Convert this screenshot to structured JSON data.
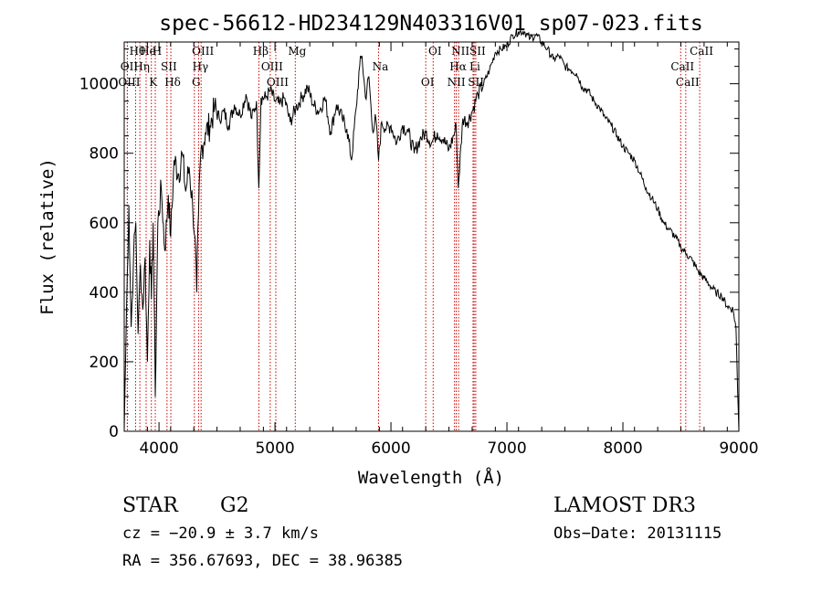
{
  "chart_data": {
    "type": "line",
    "title": "spec-56612-HD234129N403316V01_sp07-023.fits",
    "xlabel": "Wavelength (Å)",
    "ylabel": "Flux (relative)",
    "xlim": [
      3700,
      9000
    ],
    "ylim": [
      0,
      1120
    ],
    "x_ticks": [
      4000,
      5000,
      6000,
      7000,
      8000,
      9000
    ],
    "x_tick_labels": [
      "4000",
      "5000",
      "6000",
      "7000",
      "8000",
      "9000"
    ],
    "y_ticks": [
      0,
      200,
      400,
      600,
      800,
      1000
    ],
    "y_tick_labels": [
      "0",
      "200",
      "400",
      "600",
      "800",
      "1000"
    ],
    "grid": false,
    "series": [
      {
        "x": [
          3700,
          3720,
          3740,
          3760,
          3780,
          3800,
          3820,
          3840,
          3860,
          3880,
          3900,
          3920,
          3935,
          3950,
          3968,
          3990,
          4020,
          4050,
          4080,
          4101,
          4130,
          4170,
          4200,
          4230,
          4260,
          4290,
          4310,
          4325,
          4340,
          4360,
          4400,
          4440,
          4480,
          4520,
          4560,
          4600,
          4650,
          4700,
          4750,
          4800,
          4840,
          4861,
          4880,
          4920,
          4960,
          5000,
          5040,
          5080,
          5130,
          5180,
          5230,
          5280,
          5330,
          5380,
          5430,
          5480,
          5530,
          5580,
          5620,
          5660,
          5700,
          5730,
          5750,
          5780,
          5810,
          5840,
          5870,
          5893,
          5920,
          5960,
          6000,
          6050,
          6100,
          6150,
          6200,
          6250,
          6300,
          6350,
          6400,
          6450,
          6500,
          6540,
          6563,
          6580,
          6620,
          6660,
          6700,
          6750,
          6800,
          6850,
          6900,
          6950,
          7000,
          7050,
          7100,
          7150,
          7200,
          7250,
          7300,
          7350,
          7400,
          7450,
          7500,
          7550,
          7600,
          7650,
          7700,
          7750,
          7800,
          7850,
          7900,
          7950,
          8000,
          8050,
          8100,
          8150,
          8200,
          8250,
          8300,
          8350,
          8400,
          8450,
          8500,
          8550,
          8600,
          8650,
          8700,
          8750,
          8800,
          8850,
          8900,
          8950,
          8975,
          8990,
          9000
        ],
        "values": [
          0,
          350,
          650,
          300,
          500,
          600,
          280,
          480,
          350,
          500,
          200,
          550,
          380,
          600,
          100,
          600,
          700,
          520,
          680,
          560,
          780,
          740,
          800,
          690,
          760,
          650,
          560,
          400,
          620,
          800,
          860,
          880,
          930,
          900,
          920,
          880,
          940,
          910,
          970,
          900,
          950,
          700,
          960,
          960,
          980,
          950,
          940,
          960,
          890,
          930,
          960,
          990,
          940,
          920,
          960,
          860,
          940,
          900,
          870,
          780,
          930,
          1050,
          1080,
          960,
          1020,
          870,
          900,
          780,
          890,
          870,
          880,
          830,
          880,
          860,
          800,
          840,
          860,
          830,
          860,
          840,
          810,
          850,
          880,
          700,
          900,
          890,
          920,
          970,
          1000,
          1040,
          1090,
          1100,
          1110,
          1140,
          1150,
          1150,
          1130,
          1140,
          1120,
          1100,
          1070,
          1080,
          1050,
          1040,
          1030,
          990,
          980,
          950,
          930,
          900,
          880,
          850,
          820,
          800,
          780,
          740,
          700,
          670,
          640,
          600,
          580,
          560,
          530,
          510,
          490,
          460,
          440,
          420,
          400,
          390,
          360,
          350,
          300,
          110,
          0
        ]
      }
    ],
    "lines": [
      {
        "label": "Hθ",
        "x": 3798
      },
      {
        "label": "OII",
        "x": 3727
      },
      {
        "label": "OIII",
        "x": 3727
      },
      {
        "label": "He",
        "x": 3889
      },
      {
        "label": "Hη",
        "x": 3835
      },
      {
        "label": "K",
        "x": 3934
      },
      {
        "label": "H",
        "x": 3968
      },
      {
        "label": "SII",
        "x": 4069
      },
      {
        "label": "Hδ",
        "x": 4102
      },
      {
        "label": "OIII",
        "x": 4363
      },
      {
        "label": "Hγ",
        "x": 4341
      },
      {
        "label": "G",
        "x": 4305
      },
      {
        "label": "Hβ",
        "x": 4861
      },
      {
        "label": "OIII",
        "x": 4959
      },
      {
        "label": "OIII",
        "x": 5007
      },
      {
        "label": "Mg",
        "x": 5175
      },
      {
        "label": "Na",
        "x": 5893
      },
      {
        "label": "OI",
        "x": 6300
      },
      {
        "label": "OI",
        "x": 6364
      },
      {
        "label": "Hα",
        "x": 6563
      },
      {
        "label": "NII",
        "x": 6548
      },
      {
        "label": "NII",
        "x": 6583
      },
      {
        "label": "Li",
        "x": 6708
      },
      {
        "label": "SII",
        "x": 6717
      },
      {
        "label": "SII",
        "x": 6731
      },
      {
        "label": "CaII",
        "x": 8498
      },
      {
        "label": "CaII",
        "x": 8542
      },
      {
        "label": "CaII",
        "x": 8662
      }
    ],
    "line_color": "#cc0000",
    "series_color": "#000000"
  },
  "info": {
    "object_class": "STAR",
    "subclass": "G2",
    "survey": "LAMOST DR3",
    "cz": "cz = −20.9 ± 3.7 km/s",
    "obs_date": "Obs−Date: 20131115",
    "coords": "RA = 356.67693, DEC =  38.96385"
  }
}
